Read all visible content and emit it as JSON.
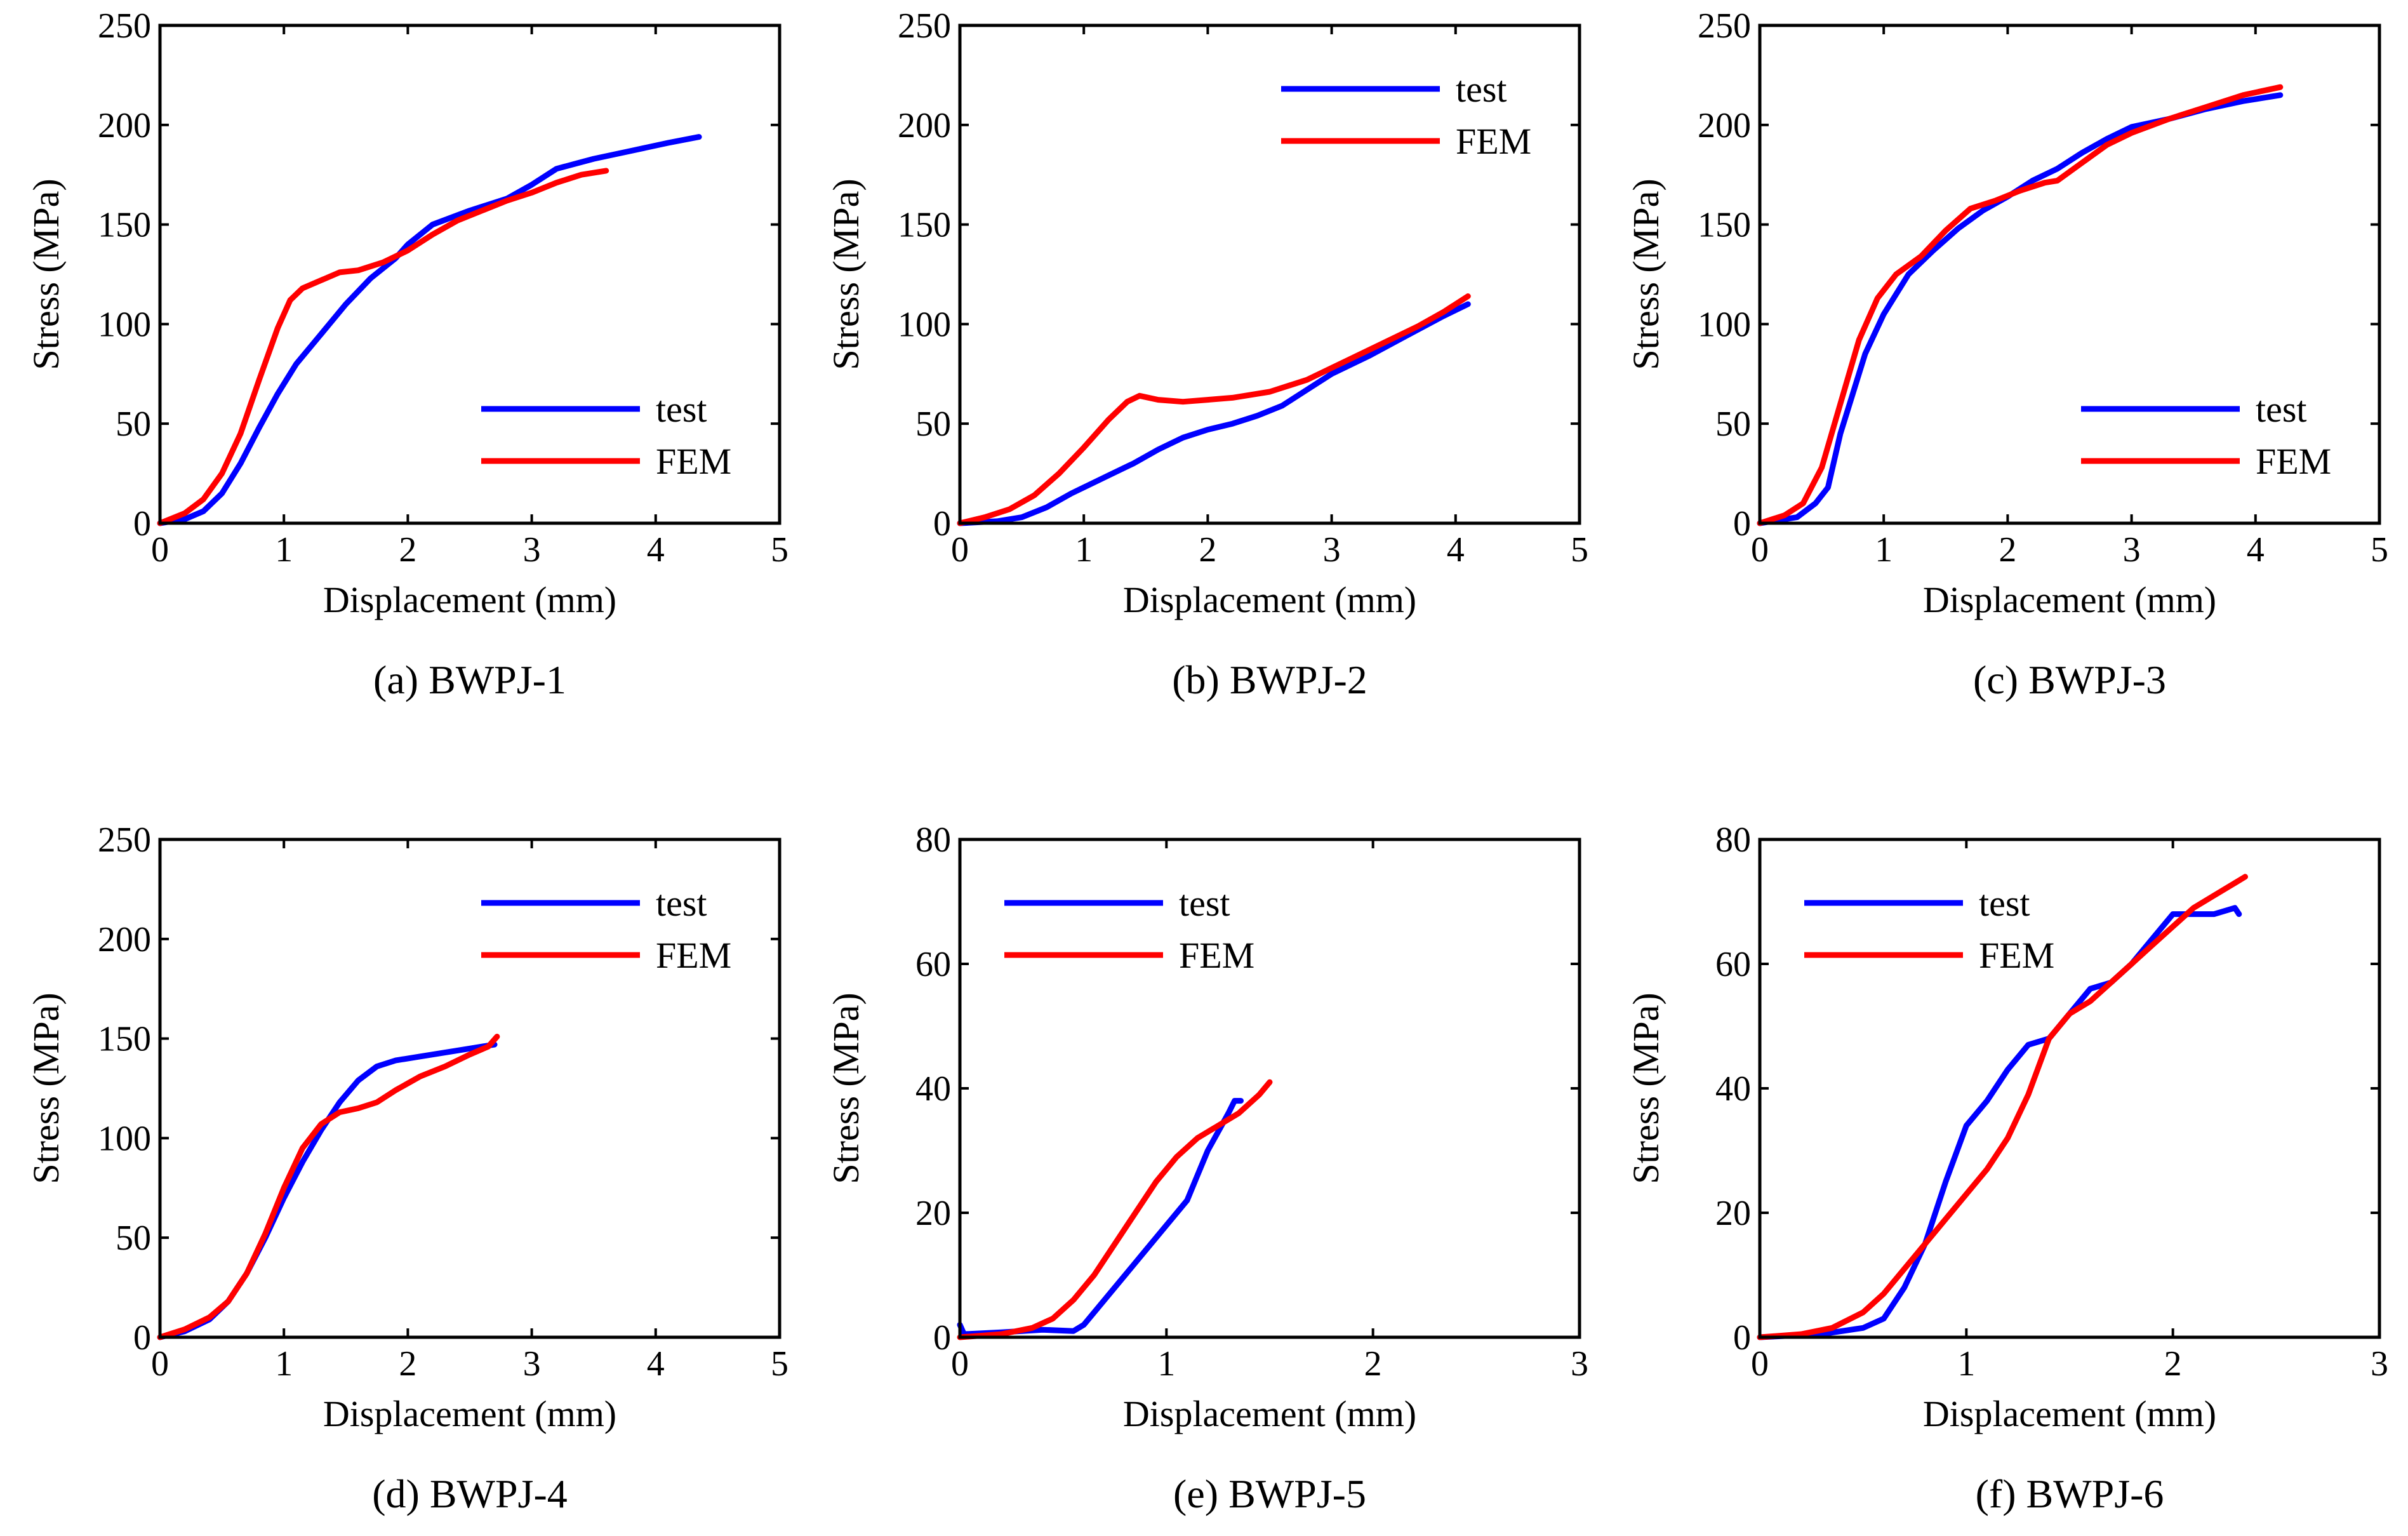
{
  "chart_data": [
    {
      "type": "line",
      "caption": "(a) BWPJ-1",
      "xlabel": "Displacement (mm)",
      "ylabel": "Stress (MPa)",
      "xlim": [
        0,
        5
      ],
      "ylim": [
        0,
        250
      ],
      "xticks": [
        "0",
        "1",
        "2",
        "3",
        "4",
        "5"
      ],
      "yticks": [
        "0",
        "50",
        "100",
        "150",
        "200",
        "250"
      ],
      "legend_position": "lower-right",
      "series": [
        {
          "name": "test",
          "color": "#0000ff",
          "points": [
            [
              0,
              0
            ],
            [
              0.2,
              2
            ],
            [
              0.35,
              6
            ],
            [
              0.5,
              15
            ],
            [
              0.65,
              30
            ],
            [
              0.8,
              48
            ],
            [
              0.95,
              65
            ],
            [
              1.1,
              80
            ],
            [
              1.3,
              95
            ],
            [
              1.5,
              110
            ],
            [
              1.7,
              123
            ],
            [
              1.9,
              133
            ],
            [
              2.0,
              140
            ],
            [
              2.2,
              150
            ],
            [
              2.5,
              157
            ],
            [
              2.8,
              163
            ],
            [
              3.0,
              170
            ],
            [
              3.2,
              178
            ],
            [
              3.5,
              183
            ],
            [
              3.8,
              187
            ],
            [
              4.1,
              191
            ],
            [
              4.35,
              194
            ]
          ]
        },
        {
          "name": "FEM",
          "color": "#ff0000",
          "points": [
            [
              0,
              0
            ],
            [
              0.2,
              5
            ],
            [
              0.35,
              12
            ],
            [
              0.5,
              25
            ],
            [
              0.65,
              45
            ],
            [
              0.8,
              72
            ],
            [
              0.95,
              98
            ],
            [
              1.05,
              112
            ],
            [
              1.15,
              118
            ],
            [
              1.3,
              122
            ],
            [
              1.45,
              126
            ],
            [
              1.6,
              127
            ],
            [
              1.8,
              131
            ],
            [
              2.0,
              137
            ],
            [
              2.2,
              145
            ],
            [
              2.4,
              152
            ],
            [
              2.6,
              157
            ],
            [
              2.8,
              162
            ],
            [
              3.0,
              166
            ],
            [
              3.2,
              171
            ],
            [
              3.4,
              175
            ],
            [
              3.6,
              177
            ]
          ]
        }
      ]
    },
    {
      "type": "line",
      "caption": "(b) BWPJ-2",
      "xlabel": "Displacement (mm)",
      "ylabel": "Stress (MPa)",
      "xlim": [
        0,
        5
      ],
      "ylim": [
        0,
        250
      ],
      "xticks": [
        "0",
        "1",
        "2",
        "3",
        "4",
        "5"
      ],
      "yticks": [
        "0",
        "50",
        "100",
        "150",
        "200",
        "250"
      ],
      "legend_position": "top-right",
      "series": [
        {
          "name": "test",
          "color": "#0000ff",
          "points": [
            [
              0,
              0
            ],
            [
              0.3,
              1
            ],
            [
              0.5,
              3
            ],
            [
              0.7,
              8
            ],
            [
              0.9,
              15
            ],
            [
              1.0,
              18
            ],
            [
              1.2,
              24
            ],
            [
              1.4,
              30
            ],
            [
              1.6,
              37
            ],
            [
              1.8,
              43
            ],
            [
              2.0,
              47
            ],
            [
              2.2,
              50
            ],
            [
              2.4,
              54
            ],
            [
              2.6,
              59
            ],
            [
              2.8,
              67
            ],
            [
              3.0,
              75
            ],
            [
              3.3,
              84
            ],
            [
              3.6,
              94
            ],
            [
              3.9,
              104
            ],
            [
              4.1,
              110
            ]
          ]
        },
        {
          "name": "FEM",
          "color": "#ff0000",
          "points": [
            [
              0,
              0
            ],
            [
              0.2,
              3
            ],
            [
              0.4,
              7
            ],
            [
              0.6,
              14
            ],
            [
              0.8,
              25
            ],
            [
              1.0,
              38
            ],
            [
              1.2,
              52
            ],
            [
              1.35,
              61
            ],
            [
              1.45,
              64
            ],
            [
              1.6,
              62
            ],
            [
              1.8,
              61
            ],
            [
              2.0,
              62
            ],
            [
              2.2,
              63
            ],
            [
              2.5,
              66
            ],
            [
              2.8,
              72
            ],
            [
              3.1,
              81
            ],
            [
              3.4,
              90
            ],
            [
              3.7,
              99
            ],
            [
              3.9,
              106
            ],
            [
              4.1,
              114
            ]
          ]
        }
      ]
    },
    {
      "type": "line",
      "caption": "(c) BWPJ-3",
      "xlabel": "Displacement (mm)",
      "ylabel": "Stress (MPa)",
      "xlim": [
        0,
        5
      ],
      "ylim": [
        0,
        250
      ],
      "xticks": [
        "0",
        "1",
        "2",
        "3",
        "4",
        "5"
      ],
      "yticks": [
        "0",
        "50",
        "100",
        "150",
        "200",
        "250"
      ],
      "legend_position": "lower-right",
      "series": [
        {
          "name": "test",
          "color": "#0000ff",
          "points": [
            [
              0,
              0
            ],
            [
              0.3,
              3
            ],
            [
              0.45,
              10
            ],
            [
              0.55,
              18
            ],
            [
              0.65,
              45
            ],
            [
              0.75,
              65
            ],
            [
              0.85,
              85
            ],
            [
              1.0,
              105
            ],
            [
              1.2,
              125
            ],
            [
              1.4,
              137
            ],
            [
              1.6,
              148
            ],
            [
              1.8,
              157
            ],
            [
              2.0,
              164
            ],
            [
              2.2,
              172
            ],
            [
              2.4,
              178
            ],
            [
              2.6,
              186
            ],
            [
              2.8,
              193
            ],
            [
              3.0,
              199
            ],
            [
              3.3,
              203
            ],
            [
              3.6,
              208
            ],
            [
              3.9,
              212
            ],
            [
              4.2,
              215
            ]
          ]
        },
        {
          "name": "FEM",
          "color": "#ff0000",
          "points": [
            [
              0,
              0
            ],
            [
              0.2,
              4
            ],
            [
              0.35,
              10
            ],
            [
              0.5,
              28
            ],
            [
              0.65,
              60
            ],
            [
              0.8,
              92
            ],
            [
              0.95,
              113
            ],
            [
              1.1,
              125
            ],
            [
              1.3,
              134
            ],
            [
              1.5,
              147
            ],
            [
              1.7,
              158
            ],
            [
              1.9,
              162
            ],
            [
              2.1,
              167
            ],
            [
              2.3,
              171
            ],
            [
              2.4,
              172
            ],
            [
              2.6,
              181
            ],
            [
              2.8,
              190
            ],
            [
              3.0,
              196
            ],
            [
              3.3,
              203
            ],
            [
              3.6,
              209
            ],
            [
              3.9,
              215
            ],
            [
              4.2,
              219
            ]
          ]
        }
      ]
    },
    {
      "type": "line",
      "caption": "(d) BWPJ-4",
      "xlabel": "Displacement (mm)",
      "ylabel": "Stress (MPa)",
      "xlim": [
        0,
        5
      ],
      "ylim": [
        0,
        250
      ],
      "xticks": [
        "0",
        "1",
        "2",
        "3",
        "4",
        "5"
      ],
      "yticks": [
        "0",
        "50",
        "100",
        "150",
        "200",
        "250"
      ],
      "legend_position": "top-right",
      "series": [
        {
          "name": "test",
          "color": "#0000ff",
          "points": [
            [
              0,
              0
            ],
            [
              0.2,
              3
            ],
            [
              0.4,
              9
            ],
            [
              0.55,
              18
            ],
            [
              0.7,
              32
            ],
            [
              0.85,
              50
            ],
            [
              1.0,
              70
            ],
            [
              1.15,
              88
            ],
            [
              1.3,
              104
            ],
            [
              1.45,
              118
            ],
            [
              1.6,
              129
            ],
            [
              1.75,
              136
            ],
            [
              1.9,
              139
            ],
            [
              2.1,
              141
            ],
            [
              2.3,
              143
            ],
            [
              2.5,
              145
            ],
            [
              2.7,
              147
            ]
          ]
        },
        {
          "name": "FEM",
          "color": "#ff0000",
          "points": [
            [
              0,
              0
            ],
            [
              0.2,
              4
            ],
            [
              0.4,
              10
            ],
            [
              0.55,
              18
            ],
            [
              0.7,
              32
            ],
            [
              0.85,
              52
            ],
            [
              1.0,
              75
            ],
            [
              1.15,
              95
            ],
            [
              1.3,
              107
            ],
            [
              1.45,
              113
            ],
            [
              1.6,
              115
            ],
            [
              1.75,
              118
            ],
            [
              1.9,
              124
            ],
            [
              2.1,
              131
            ],
            [
              2.3,
              136
            ],
            [
              2.5,
              142
            ],
            [
              2.65,
              146
            ],
            [
              2.72,
              151
            ]
          ]
        }
      ]
    },
    {
      "type": "line",
      "caption": "(e) BWPJ-5",
      "xlabel": "Displacement (mm)",
      "ylabel": "Stress (MPa)",
      "xlim": [
        0,
        3
      ],
      "ylim": [
        0,
        80
      ],
      "xticks": [
        "0",
        "1",
        "2",
        "3"
      ],
      "yticks": [
        "0",
        "20",
        "40",
        "60",
        "80"
      ],
      "legend_position": "top-left",
      "series": [
        {
          "name": "test",
          "color": "#0000ff",
          "points": [
            [
              0,
              2
            ],
            [
              0.02,
              0.5
            ],
            [
              0.2,
              0.8
            ],
            [
              0.4,
              1.2
            ],
            [
              0.55,
              1
            ],
            [
              0.6,
              2
            ],
            [
              0.7,
              6
            ],
            [
              0.8,
              10
            ],
            [
              0.9,
              14
            ],
            [
              1.0,
              18
            ],
            [
              1.1,
              22
            ],
            [
              1.15,
              26
            ],
            [
              1.2,
              30
            ],
            [
              1.25,
              33
            ],
            [
              1.3,
              36
            ],
            [
              1.33,
              38
            ],
            [
              1.36,
              38
            ]
          ]
        },
        {
          "name": "FEM",
          "color": "#ff0000",
          "points": [
            [
              0,
              0
            ],
            [
              0.2,
              0.5
            ],
            [
              0.35,
              1.5
            ],
            [
              0.45,
              3
            ],
            [
              0.55,
              6
            ],
            [
              0.65,
              10
            ],
            [
              0.75,
              15
            ],
            [
              0.85,
              20
            ],
            [
              0.95,
              25
            ],
            [
              1.05,
              29
            ],
            [
              1.15,
              32
            ],
            [
              1.25,
              34
            ],
            [
              1.35,
              36
            ],
            [
              1.45,
              39
            ],
            [
              1.5,
              41
            ]
          ]
        }
      ]
    },
    {
      "type": "line",
      "caption": "(f) BWPJ-6",
      "xlabel": "Displacement (mm)",
      "ylabel": "Stress (MPa)",
      "xlim": [
        0,
        3
      ],
      "ylim": [
        0,
        80
      ],
      "xticks": [
        "0",
        "1",
        "2",
        "3"
      ],
      "yticks": [
        "0",
        "20",
        "40",
        "60",
        "80"
      ],
      "legend_position": "top-left",
      "series": [
        {
          "name": "test",
          "color": "#0000ff",
          "points": [
            [
              0,
              0
            ],
            [
              0.3,
              0.5
            ],
            [
              0.5,
              1.5
            ],
            [
              0.6,
              3
            ],
            [
              0.7,
              8
            ],
            [
              0.8,
              15
            ],
            [
              0.9,
              25
            ],
            [
              1.0,
              34
            ],
            [
              1.1,
              38
            ],
            [
              1.2,
              43
            ],
            [
              1.3,
              47
            ],
            [
              1.4,
              48
            ],
            [
              1.5,
              52
            ],
            [
              1.6,
              56
            ],
            [
              1.7,
              57
            ],
            [
              1.8,
              60
            ],
            [
              1.9,
              64
            ],
            [
              2.0,
              68
            ],
            [
              2.1,
              68
            ],
            [
              2.2,
              68
            ],
            [
              2.3,
              69
            ],
            [
              2.32,
              68
            ]
          ]
        },
        {
          "name": "FEM",
          "color": "#ff0000",
          "points": [
            [
              0,
              0
            ],
            [
              0.2,
              0.5
            ],
            [
              0.35,
              1.5
            ],
            [
              0.5,
              4
            ],
            [
              0.6,
              7
            ],
            [
              0.7,
              11
            ],
            [
              0.8,
              15
            ],
            [
              0.9,
              19
            ],
            [
              1.0,
              23
            ],
            [
              1.1,
              27
            ],
            [
              1.2,
              32
            ],
            [
              1.3,
              39
            ],
            [
              1.4,
              48
            ],
            [
              1.5,
              52
            ],
            [
              1.6,
              54
            ],
            [
              1.7,
              57
            ],
            [
              1.8,
              60
            ],
            [
              1.9,
              63
            ],
            [
              2.0,
              66
            ],
            [
              2.1,
              69
            ],
            [
              2.2,
              71
            ],
            [
              2.3,
              73
            ],
            [
              2.35,
              74
            ]
          ]
        }
      ]
    }
  ]
}
